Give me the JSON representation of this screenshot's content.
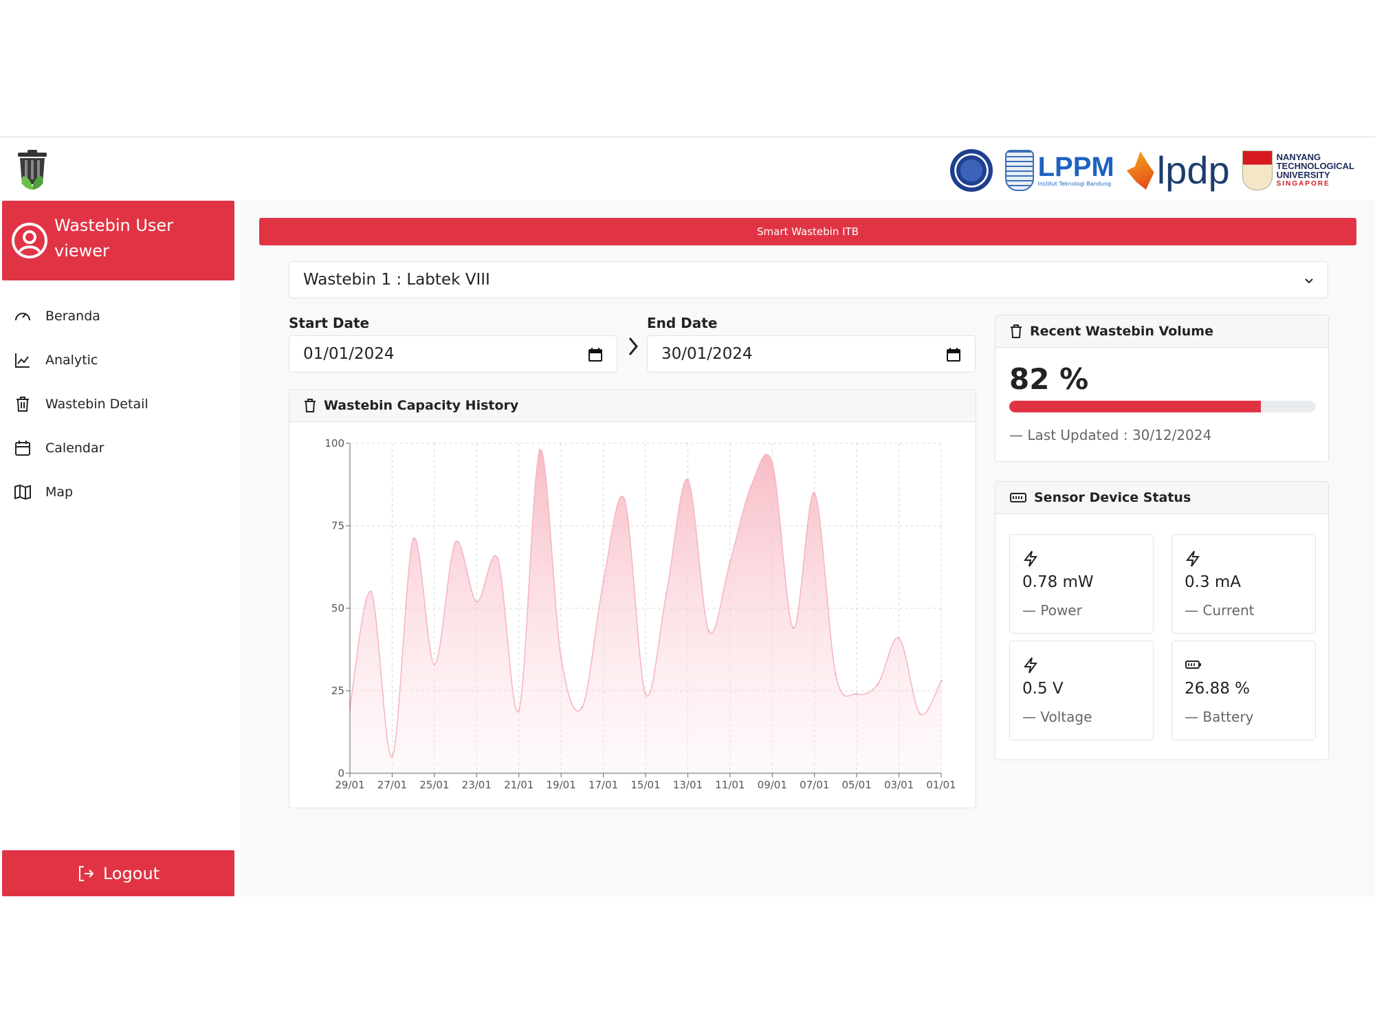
{
  "sidebar": {
    "user_name": "Wastebin User viewer",
    "items": [
      {
        "label": "Beranda",
        "icon": "gauge-icon"
      },
      {
        "label": "Analytic",
        "icon": "line-chart-icon"
      },
      {
        "label": "Wastebin Detail",
        "icon": "trash-icon"
      },
      {
        "label": "Calendar",
        "icon": "calendar-icon"
      },
      {
        "label": "Map",
        "icon": "map-icon"
      }
    ],
    "logout_label": "Logout"
  },
  "header": {
    "partners": {
      "lppm": "LPPM",
      "lppm_sub": "Institut Teknologi Bandung",
      "lpdp": "lpdp",
      "ntu_lines": [
        "NANYANG",
        "TECHNOLOGICAL",
        "UNIVERSITY"
      ],
      "ntu_country": "SINGAPORE"
    }
  },
  "main": {
    "banner": "Smart Wastebin ITB",
    "wastebin_select": "Wastebin 1 : Labtek VIII",
    "start_date_label": "Start Date",
    "start_date": "01/01/2024",
    "end_date_label": "End Date",
    "end_date": "30/01/2024"
  },
  "capacity_card": {
    "title": "Wastebin Capacity History"
  },
  "volume_card": {
    "title": "Recent Wastebin Volume",
    "value": 82,
    "value_text": "82 %",
    "last_updated": "— Last Updated : 30/12/2024"
  },
  "sensor_card": {
    "title": "Sensor Device Status",
    "tiles": [
      {
        "value": "0.78 mW",
        "label": "— Power",
        "icon": "bolt-icon"
      },
      {
        "value": "0.3 mA",
        "label": "— Current",
        "icon": "bolt-icon"
      },
      {
        "value": "0.5 V",
        "label": "— Voltage",
        "icon": "bolt-icon"
      },
      {
        "value": "26.88 %",
        "label": "— Battery",
        "icon": "battery-icon"
      }
    ]
  },
  "colors": {
    "accent": "#e03445",
    "area_fill": "#f9c9d1",
    "area_line": "#f6b3bf"
  },
  "chart_data": {
    "type": "area",
    "x": [
      "29/01",
      "28/01",
      "27/01",
      "26/01",
      "25/01",
      "24/01",
      "23/01",
      "22/01",
      "21/01",
      "20/01",
      "19/01",
      "18/01",
      "17/01",
      "16/01",
      "15/01",
      "14/01",
      "13/01",
      "12/01",
      "11/01",
      "10/01",
      "09/01",
      "08/01",
      "07/01",
      "06/01",
      "05/01",
      "04/01",
      "03/01",
      "02/01",
      "01/01"
    ],
    "tick_labels": [
      "29/01",
      "27/01",
      "25/01",
      "23/01",
      "21/01",
      "19/01",
      "17/01",
      "15/01",
      "13/01",
      "11/01",
      "09/01",
      "07/01",
      "05/01",
      "03/01",
      "01/01"
    ],
    "series": [
      {
        "values": [
          20,
          55,
          5,
          71,
          33,
          70,
          52,
          65,
          19,
          98,
          35,
          20,
          58,
          83,
          24,
          55,
          89,
          43,
          64,
          87,
          94,
          44,
          85,
          30,
          24,
          27,
          41,
          18,
          28
        ]
      }
    ],
    "ylim": [
      0,
      100
    ],
    "yticks": [
      0,
      25,
      50,
      75,
      100
    ],
    "grid": true
  }
}
